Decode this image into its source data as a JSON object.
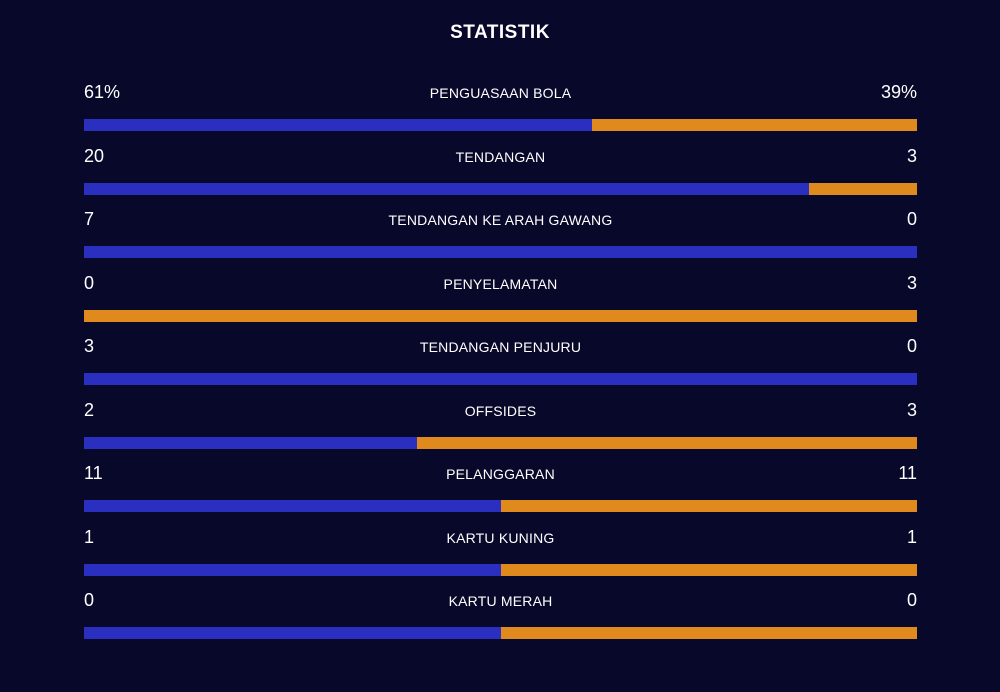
{
  "title": "STATISTIK",
  "colors": {
    "background": "#08082a",
    "home": "#2a2fbf",
    "away": "#e08a1e"
  },
  "stats": [
    {
      "label": "PENGUASAAN BOLA",
      "home": "61%",
      "away": "39%",
      "home_share": 0.61
    },
    {
      "label": "TENDANGAN",
      "home": "20",
      "away": "3",
      "home_share": 0.87
    },
    {
      "label": "TENDANGAN KE ARAH GAWANG",
      "home": "7",
      "away": "0",
      "home_share": 1.0
    },
    {
      "label": "PENYELAMATAN",
      "home": "0",
      "away": "3",
      "home_share": 0.0
    },
    {
      "label": "TENDANGAN PENJURU",
      "home": "3",
      "away": "0",
      "home_share": 1.0
    },
    {
      "label": "OFFSIDES",
      "home": "2",
      "away": "3",
      "home_share": 0.4
    },
    {
      "label": "PELANGGARAN",
      "home": "11",
      "away": "11",
      "home_share": 0.5
    },
    {
      "label": "KARTU KUNING",
      "home": "1",
      "away": "1",
      "home_share": 0.5
    },
    {
      "label": "KARTU MERAH",
      "home": "0",
      "away": "0",
      "home_share": 0.5
    }
  ]
}
